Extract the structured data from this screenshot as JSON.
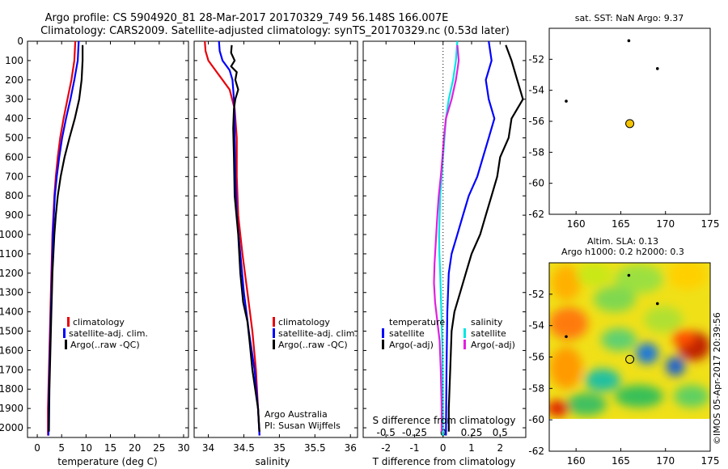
{
  "titles": {
    "line1": "Argo profile: CS 5904920_81 28-Mar-2017 20170329_749 56.148S 166.007E",
    "line2": "Climatology: CARS2009. Satellite-adjusted climatology: synTS_20170329.nc (0.53d later)"
  },
  "chart_data": [
    {
      "id": "temperature",
      "type": "line",
      "xlabel": "temperature (deg C)",
      "ylabel": "",
      "xlim": [
        -2,
        31
      ],
      "ylim": [
        2050,
        0
      ],
      "xticks": [
        0,
        5,
        10,
        15,
        20,
        25,
        30
      ],
      "yticks": [
        0,
        100,
        200,
        300,
        400,
        500,
        600,
        700,
        800,
        900,
        1000,
        1100,
        1200,
        1300,
        1400,
        1500,
        1600,
        1700,
        1800,
        1900,
        2000
      ],
      "legend": [
        "climatology",
        "satellite-adj. clim.",
        "Argo(..raw -QC)"
      ],
      "series": [
        {
          "name": "climatology",
          "color": "#e8000b",
          "points": [
            [
              7.8,
              0
            ],
            [
              7.6,
              100
            ],
            [
              7.0,
              200
            ],
            [
              6.2,
              300
            ],
            [
              5.4,
              400
            ],
            [
              4.7,
              500
            ],
            [
              4.2,
              600
            ],
            [
              3.8,
              700
            ],
            [
              3.5,
              800
            ],
            [
              3.3,
              900
            ],
            [
              3.1,
              1000
            ],
            [
              3.0,
              1100
            ],
            [
              2.9,
              1200
            ],
            [
              2.8,
              1300
            ],
            [
              2.7,
              1400
            ],
            [
              2.6,
              1500
            ],
            [
              2.5,
              1600
            ],
            [
              2.4,
              1700
            ],
            [
              2.3,
              1800
            ],
            [
              2.2,
              1900
            ],
            [
              2.2,
              2040
            ]
          ]
        },
        {
          "name": "satellite-adj. clim.",
          "color": "#0000ff",
          "points": [
            [
              8.5,
              0
            ],
            [
              8.3,
              100
            ],
            [
              7.6,
              200
            ],
            [
              6.8,
              300
            ],
            [
              5.9,
              400
            ],
            [
              5.1,
              500
            ],
            [
              4.5,
              600
            ],
            [
              4.0,
              700
            ],
            [
              3.6,
              800
            ],
            [
              3.4,
              900
            ],
            [
              3.2,
              1000
            ],
            [
              3.1,
              1100
            ],
            [
              3.0,
              1200
            ],
            [
              2.9,
              1300
            ],
            [
              2.8,
              1400
            ],
            [
              2.7,
              1500
            ],
            [
              2.6,
              1600
            ],
            [
              2.5,
              1700
            ],
            [
              2.4,
              1800
            ],
            [
              2.35,
              1900
            ],
            [
              2.3,
              2040
            ]
          ]
        },
        {
          "name": "Argo(..raw -QC)",
          "color": "#000000",
          "points": [
            [
              9.3,
              20
            ],
            [
              9.3,
              100
            ],
            [
              9.1,
              200
            ],
            [
              8.6,
              300
            ],
            [
              7.7,
              400
            ],
            [
              6.6,
              500
            ],
            [
              5.6,
              600
            ],
            [
              4.8,
              700
            ],
            [
              4.2,
              800
            ],
            [
              3.8,
              900
            ],
            [
              3.5,
              1000
            ],
            [
              3.3,
              1100
            ],
            [
              3.1,
              1200
            ],
            [
              3.0,
              1300
            ],
            [
              2.9,
              1400
            ],
            [
              2.8,
              1500
            ],
            [
              2.7,
              1600
            ],
            [
              2.6,
              1700
            ],
            [
              2.5,
              1800
            ],
            [
              2.45,
              1900
            ],
            [
              2.4,
              2020
            ]
          ]
        }
      ]
    },
    {
      "id": "salinity",
      "type": "line",
      "xlabel": "salinity",
      "ylabel": "",
      "xlim": [
        33.8,
        36.1
      ],
      "ylim": [
        2050,
        0
      ],
      "xticks": [
        34,
        34.5,
        35,
        35.5,
        36
      ],
      "legend": [
        "climatology",
        "satellite-adj. clim.",
        "Argo(..raw -QC)"
      ],
      "annotation": [
        "Argo Australia",
        "PI: Susan Wijffels"
      ],
      "series": [
        {
          "name": "climatology",
          "color": "#e8000b",
          "points": [
            [
              33.95,
              0
            ],
            [
              33.96,
              50
            ],
            [
              34.0,
              100
            ],
            [
              34.1,
              150
            ],
            [
              34.2,
              200
            ],
            [
              34.3,
              250
            ],
            [
              34.37,
              350
            ],
            [
              34.4,
              500
            ],
            [
              34.4,
              700
            ],
            [
              34.42,
              900
            ],
            [
              34.48,
              1100
            ],
            [
              34.55,
              1300
            ],
            [
              34.62,
              1500
            ],
            [
              34.67,
              1700
            ],
            [
              34.7,
              1900
            ],
            [
              34.72,
              2040
            ]
          ]
        },
        {
          "name": "satellite-adj. clim.",
          "color": "#0000ff",
          "points": [
            [
              34.15,
              0
            ],
            [
              34.16,
              50
            ],
            [
              34.2,
              100
            ],
            [
              34.3,
              150
            ],
            [
              34.34,
              200
            ],
            [
              34.36,
              300
            ],
            [
              34.37,
              400
            ],
            [
              34.37,
              500
            ],
            [
              34.38,
              700
            ],
            [
              34.4,
              900
            ],
            [
              34.45,
              1100
            ],
            [
              34.5,
              1300
            ],
            [
              34.57,
              1500
            ],
            [
              34.65,
              1700
            ],
            [
              34.7,
              1900
            ],
            [
              34.72,
              2040
            ]
          ]
        },
        {
          "name": "Argo(..raw -QC)",
          "color": "#000000",
          "points": [
            [
              34.33,
              20
            ],
            [
              34.32,
              60
            ],
            [
              34.37,
              100
            ],
            [
              34.32,
              130
            ],
            [
              34.4,
              160
            ],
            [
              34.38,
              200
            ],
            [
              34.42,
              250
            ],
            [
              34.38,
              300
            ],
            [
              34.36,
              350
            ],
            [
              34.35,
              450
            ],
            [
              34.36,
              600
            ],
            [
              34.37,
              800
            ],
            [
              34.42,
              1000
            ],
            [
              34.45,
              1200
            ],
            [
              34.49,
              1350
            ],
            [
              34.55,
              1450
            ],
            [
              34.58,
              1550
            ],
            [
              34.62,
              1700
            ],
            [
              34.66,
              1800
            ],
            [
              34.7,
              1900
            ],
            [
              34.72,
              2020
            ]
          ]
        }
      ]
    },
    {
      "id": "difference",
      "type": "line",
      "xlabel": "T difference from climatology",
      "xlabel_top": "S difference from climatology",
      "ylabel": "",
      "xlim": [
        -2.8,
        2.9
      ],
      "ylim": [
        2050,
        0
      ],
      "xticks": [
        -2,
        -1,
        0,
        1,
        2
      ],
      "sticks": [
        "-0.5",
        "-0.25",
        "0",
        "0.25",
        "0.5"
      ],
      "legend_headers": [
        "temperature",
        "salinity"
      ],
      "legend": [
        {
          "label": "satellite",
          "color": "#0000ff"
        },
        {
          "label": "Argo(-adj)",
          "color": "#000000"
        },
        {
          "label": "satellite",
          "color": "#00e5e5"
        },
        {
          "label": "Argo(-adj)",
          "color": "#e020e0"
        }
      ],
      "series": [
        {
          "name": "T satellite",
          "color": "#0000ff",
          "points": [
            [
              1.6,
              0
            ],
            [
              1.7,
              100
            ],
            [
              1.5,
              200
            ],
            [
              1.6,
              300
            ],
            [
              1.8,
              400
            ],
            [
              1.6,
              500
            ],
            [
              1.4,
              600
            ],
            [
              1.2,
              700
            ],
            [
              0.9,
              800
            ],
            [
              0.7,
              900
            ],
            [
              0.5,
              1000
            ],
            [
              0.3,
              1100
            ],
            [
              0.2,
              1200
            ],
            [
              0.15,
              1400
            ],
            [
              0.12,
              1700
            ],
            [
              0.1,
              2040
            ]
          ]
        },
        {
          "name": "T Argo(-adj)",
          "color": "#000000",
          "points": [
            [
              2.2,
              20
            ],
            [
              2.4,
              100
            ],
            [
              2.6,
              200
            ],
            [
              2.8,
              300
            ],
            [
              2.4,
              400
            ],
            [
              2.3,
              500
            ],
            [
              2.0,
              600
            ],
            [
              1.9,
              700
            ],
            [
              1.7,
              800
            ],
            [
              1.5,
              900
            ],
            [
              1.3,
              1000
            ],
            [
              1.0,
              1100
            ],
            [
              0.8,
              1200
            ],
            [
              0.6,
              1300
            ],
            [
              0.4,
              1400
            ],
            [
              0.3,
              1500
            ],
            [
              0.25,
              1700
            ],
            [
              0.2,
              1900
            ],
            [
              0.2,
              2020
            ]
          ]
        },
        {
          "name": "S satellite",
          "color": "#00e5e5",
          "points": [
            [
              0.5,
              0
            ],
            [
              0.45,
              100
            ],
            [
              0.35,
              200
            ],
            [
              0.2,
              300
            ],
            [
              0.1,
              400
            ],
            [
              0.05,
              500
            ],
            [
              0.0,
              600
            ],
            [
              -0.05,
              700
            ],
            [
              -0.1,
              800
            ],
            [
              -0.12,
              900
            ],
            [
              -0.14,
              1000
            ],
            [
              -0.13,
              1100
            ],
            [
              -0.1,
              1200
            ],
            [
              -0.06,
              1400
            ],
            [
              -0.02,
              1600
            ],
            [
              -0.01,
              1800
            ],
            [
              0.0,
              2040
            ]
          ]
        },
        {
          "name": "S Argo(-adj)",
          "color": "#e020e0",
          "points": [
            [
              0.5,
              20
            ],
            [
              0.55,
              100
            ],
            [
              0.5,
              150
            ],
            [
              0.45,
              200
            ],
            [
              0.3,
              300
            ],
            [
              0.1,
              400
            ],
            [
              0.03,
              500
            ],
            [
              -0.02,
              600
            ],
            [
              -0.08,
              700
            ],
            [
              -0.15,
              800
            ],
            [
              -0.2,
              900
            ],
            [
              -0.24,
              1000
            ],
            [
              -0.3,
              1150
            ],
            [
              -0.32,
              1250
            ],
            [
              -0.28,
              1350
            ],
            [
              -0.2,
              1450
            ],
            [
              -0.12,
              1550
            ],
            [
              -0.08,
              1700
            ],
            [
              -0.05,
              1900
            ],
            [
              -0.05,
              2020
            ]
          ]
        }
      ]
    },
    {
      "id": "map_sst",
      "type": "scatter",
      "title": "sat. SST: NaN Argo: 9.37",
      "xlim": [
        157,
        175
      ],
      "ylim": [
        -62,
        -50
      ],
      "xticks": [
        160,
        165,
        170,
        175
      ],
      "yticks": [
        -52,
        -54,
        -56,
        -58,
        -60,
        -62
      ],
      "profile": {
        "lon": 166.007,
        "lat": -56.148,
        "color": "#f5c400"
      },
      "land": [
        [
          165.9,
          -50.8
        ],
        [
          169.1,
          -52.6
        ],
        [
          158.9,
          -54.7
        ]
      ]
    },
    {
      "id": "map_sla",
      "type": "heatmap",
      "title": [
        "Altim. SLA: 0.13",
        "Argo h1000: 0.2 h2000: 0.3"
      ],
      "xlim": [
        157,
        175
      ],
      "ylim": [
        -62,
        -50
      ],
      "xticks": [
        160,
        165,
        170,
        175
      ],
      "yticks": [
        -52,
        -54,
        -56,
        -58,
        -60,
        -62
      ],
      "profile": {
        "lon": 166.007,
        "lat": -56.148
      },
      "land": [
        [
          165.9,
          -50.8
        ],
        [
          169.1,
          -52.6
        ],
        [
          158.9,
          -54.7
        ]
      ],
      "data_extent": {
        "lon": [
          157,
          175
        ],
        "lat": [
          -60,
          -50
        ]
      }
    }
  ],
  "watermark": "©IMOS 05-Apr-2017 20:39:56"
}
